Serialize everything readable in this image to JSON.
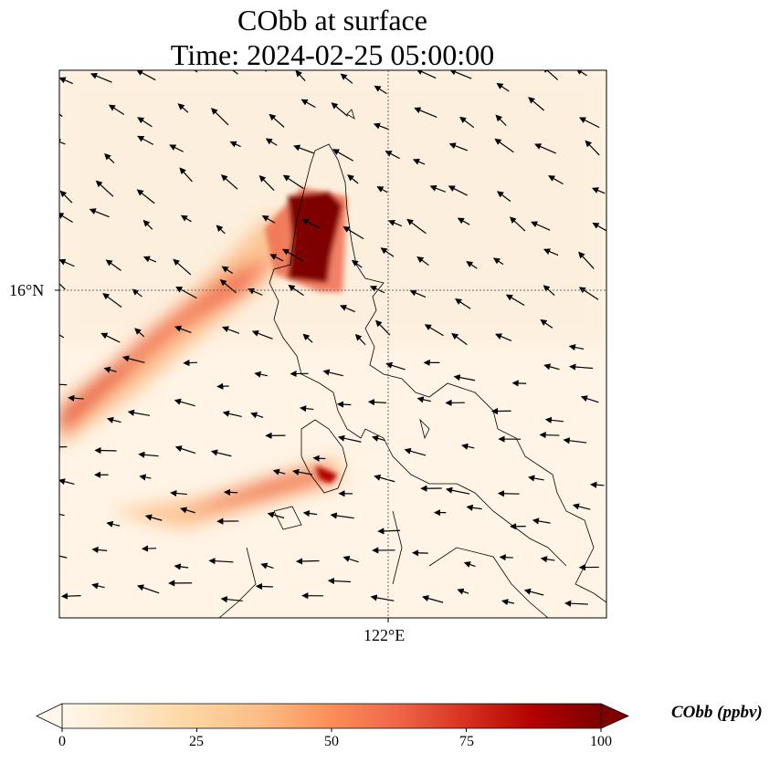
{
  "title": {
    "line1": "CObb at surface",
    "line2": "Time: 2024-02-25 05:00:00"
  },
  "map": {
    "lat_label": "16°N",
    "lon_label": "122°E",
    "colormap": [
      "#fff7ec",
      "#fee8c8",
      "#fdd49e",
      "#fdbb84",
      "#fc8d59",
      "#ef6548",
      "#d7301f",
      "#b30000",
      "#7f0000"
    ]
  },
  "colorbar": {
    "label": "CObb (ppbv)",
    "min": 0,
    "max": 100,
    "extend": "both",
    "ticks": [
      "0",
      "25",
      "50",
      "75",
      "100"
    ]
  }
}
